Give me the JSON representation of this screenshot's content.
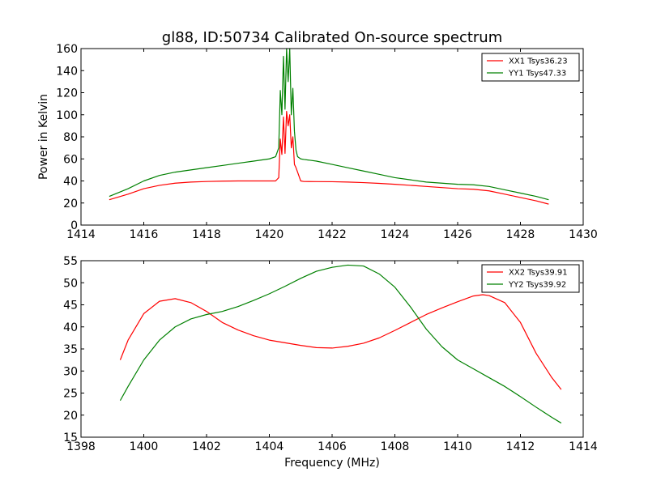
{
  "colors": {
    "xx": "#ff0000",
    "yy": "#008000",
    "axis": "#000000",
    "background": "#ffffff"
  },
  "chart_data": [
    {
      "type": "line",
      "title": "gl88, ID:50734 Calibrated On-source spectrum",
      "xlabel": "",
      "ylabel": "Power in Kelvin",
      "xlim": [
        1414,
        1430
      ],
      "ylim": [
        0,
        160
      ],
      "xticks": [
        "1414",
        "1416",
        "1418",
        "1420",
        "1422",
        "1424",
        "1426",
        "1428",
        "1430"
      ],
      "yticks": [
        "0",
        "20",
        "40",
        "60",
        "80",
        "100",
        "120",
        "140",
        "160"
      ],
      "legend_position": "top-right",
      "grid": false,
      "series": [
        {
          "name": "XX1 Tsys36.23",
          "color": "#ff0000",
          "x": [
            1414.9,
            1415.5,
            1416.0,
            1416.5,
            1417.0,
            1417.5,
            1418.0,
            1418.5,
            1419.0,
            1419.5,
            1420.0,
            1420.2,
            1420.3,
            1420.35,
            1420.4,
            1420.45,
            1420.5,
            1420.55,
            1420.6,
            1420.65,
            1420.7,
            1420.75,
            1420.8,
            1420.85,
            1420.9,
            1421.0,
            1421.1,
            1421.5,
            1422.0,
            1422.5,
            1423.0,
            1423.5,
            1424.0,
            1424.5,
            1425.0,
            1425.5,
            1426.0,
            1426.5,
            1427.0,
            1427.5,
            1428.0,
            1428.5,
            1428.9
          ],
          "y": [
            23,
            28,
            33,
            36,
            38,
            39,
            39.5,
            39.8,
            40,
            40,
            40,
            40,
            43,
            78,
            64,
            98,
            65,
            103,
            90,
            100,
            70,
            80,
            55,
            52,
            48,
            40,
            39.5,
            39.4,
            39.3,
            39,
            38.5,
            37.8,
            37,
            36,
            35,
            34,
            33,
            32.5,
            31,
            28,
            25,
            22,
            19
          ]
        },
        {
          "name": "YY1 Tsys47.33",
          "color": "#008000",
          "x": [
            1414.9,
            1415.5,
            1416.0,
            1416.5,
            1417.0,
            1417.5,
            1418.0,
            1418.5,
            1419.0,
            1419.5,
            1420.0,
            1420.2,
            1420.3,
            1420.35,
            1420.4,
            1420.45,
            1420.5,
            1420.55,
            1420.6,
            1420.65,
            1420.7,
            1420.75,
            1420.8,
            1420.85,
            1420.9,
            1421.0,
            1421.1,
            1421.5,
            1422.0,
            1422.5,
            1423.0,
            1423.5,
            1424.0,
            1424.5,
            1425.0,
            1425.5,
            1426.0,
            1426.5,
            1427.0,
            1427.5,
            1428.0,
            1428.5,
            1428.9
          ],
          "y": [
            26,
            33,
            40,
            45,
            48,
            50,
            52,
            54,
            56,
            58,
            60,
            62,
            70,
            122,
            100,
            153,
            105,
            160,
            130,
            160,
            100,
            124,
            85,
            68,
            62,
            60,
            59.5,
            58,
            55,
            52,
            49,
            46,
            43,
            41,
            39,
            38,
            37,
            36.5,
            35,
            32,
            29,
            26,
            23
          ]
        }
      ]
    },
    {
      "type": "line",
      "title": "",
      "xlabel": "Frequency (MHz)",
      "ylabel": "",
      "xlim": [
        1398,
        1414
      ],
      "ylim": [
        15,
        55
      ],
      "xticks": [
        "1398",
        "1400",
        "1402",
        "1404",
        "1406",
        "1408",
        "1410",
        "1412",
        "1414"
      ],
      "yticks": [
        "15",
        "20",
        "25",
        "30",
        "35",
        "40",
        "45",
        "50",
        "55"
      ],
      "legend_position": "top-right",
      "grid": false,
      "series": [
        {
          "name": "XX2 Tsys39.91",
          "color": "#ff0000",
          "x": [
            1399.25,
            1399.5,
            1400.0,
            1400.5,
            1401.0,
            1401.5,
            1402.0,
            1402.5,
            1403.0,
            1403.5,
            1404.0,
            1404.5,
            1405.0,
            1405.5,
            1406.0,
            1406.5,
            1407.0,
            1407.5,
            1408.0,
            1408.5,
            1409.0,
            1409.5,
            1410.0,
            1410.5,
            1410.8,
            1411.0,
            1411.5,
            1412.0,
            1412.5,
            1413.0,
            1413.3
          ],
          "y": [
            32.5,
            37,
            43,
            45.8,
            46.4,
            45.5,
            43.5,
            41,
            39.3,
            38,
            37,
            36.4,
            35.8,
            35.3,
            35.2,
            35.6,
            36.3,
            37.5,
            39.2,
            41,
            42.8,
            44.3,
            45.7,
            47,
            47.3,
            47.1,
            45.5,
            41,
            34,
            28.5,
            25.8
          ]
        },
        {
          "name": "YY2 Tsys39.92",
          "color": "#008000",
          "x": [
            1399.25,
            1399.5,
            1400.0,
            1400.5,
            1401.0,
            1401.5,
            1402.0,
            1402.5,
            1403.0,
            1403.5,
            1404.0,
            1404.5,
            1405.0,
            1405.5,
            1406.0,
            1406.5,
            1407.0,
            1407.5,
            1408.0,
            1408.5,
            1409.0,
            1409.5,
            1410.0,
            1410.5,
            1411.0,
            1411.5,
            1412.0,
            1412.5,
            1413.0,
            1413.3
          ],
          "y": [
            23.3,
            26.5,
            32.5,
            37,
            40,
            41.8,
            42.8,
            43.5,
            44.6,
            46,
            47.5,
            49.2,
            51,
            52.6,
            53.5,
            54,
            53.8,
            52,
            49,
            44.5,
            39.5,
            35.5,
            32.5,
            30.5,
            28.5,
            26.5,
            24.2,
            21.8,
            19.5,
            18.2
          ]
        }
      ]
    }
  ]
}
